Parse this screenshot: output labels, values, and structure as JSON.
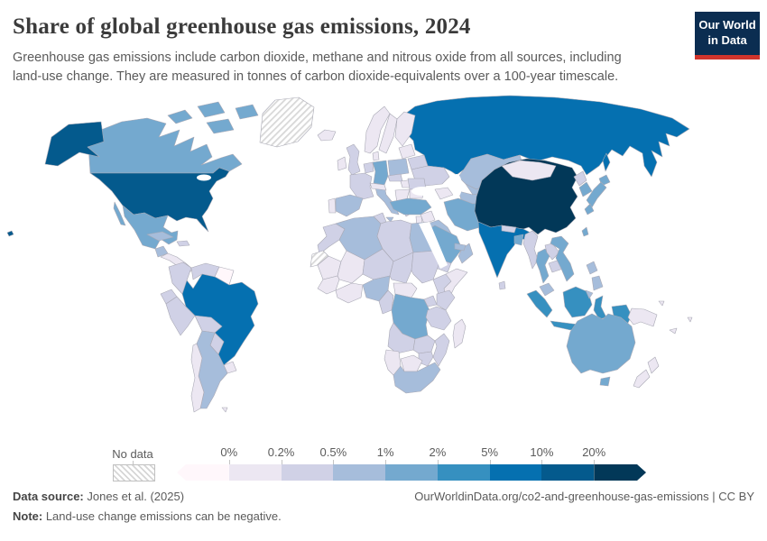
{
  "header": {
    "title": "Share of global greenhouse gas emissions, 2024",
    "subtitle": "Greenhouse gas emissions include carbon dioxide, methane and nitrous oxide from all sources, including land-use change. They are measured in tonnes of carbon dioxide-equivalents over a 100-year timescale.",
    "logo": {
      "line1": "Our World",
      "line2": "in Data",
      "bg_color": "#0b2d51",
      "accent_color": "#d0342c"
    }
  },
  "legend": {
    "no_data_label": "No data"
  },
  "footer": {
    "source_label": "Data source:",
    "source_text": " Jones et al. (2025)",
    "note_label": "Note:",
    "note_text": " Land-use change emissions can be negative.",
    "credit": "OurWorldinData.org/co2-and-greenhouse-gas-emissions | CC BY"
  },
  "chart_data": {
    "type": "choropleth",
    "title": "Share of global greenhouse gas emissions, 2024",
    "unit": "% of global greenhouse gas emissions",
    "projection": "world map",
    "legend_position": "bottom",
    "tick_labels": [
      "0%",
      "0.2%",
      "0.5%",
      "1%",
      "2%",
      "5%",
      "10%",
      "20%"
    ],
    "bins": [
      {
        "range": "<0%",
        "color": "#fff7fb"
      },
      {
        "range": "0–0.2%",
        "color": "#ece7f2"
      },
      {
        "range": "0.2–0.5%",
        "color": "#d0d1e6"
      },
      {
        "range": "0.5–1%",
        "color": "#a6bddb"
      },
      {
        "range": "1–2%",
        "color": "#74a9cf"
      },
      {
        "range": "2–5%",
        "color": "#3690c0"
      },
      {
        "range": "5–10%",
        "color": "#0570b0"
      },
      {
        "range": "10–20%",
        "color": "#045a8d"
      },
      {
        "range": ">20%",
        "color": "#023858"
      }
    ],
    "no_data": {
      "label": "No data",
      "pattern": "diagonal-hatch"
    },
    "countries": {
      "usa": {
        "name": "United States",
        "bin": 7
      },
      "canada": {
        "name": "Canada",
        "bin": 4
      },
      "greenland": {
        "name": "Greenland",
        "bin": -1
      },
      "mexico": {
        "name": "Mexico",
        "bin": 4
      },
      "guatemala": {
        "name": "Guatemala",
        "bin": 3
      },
      "centralamerica": {
        "name": "Central America",
        "bin": 1
      },
      "cuba": {
        "name": "Cuba",
        "bin": 3
      },
      "hispaniola": {
        "name": "Haiti & Dominican Republic",
        "bin": 2
      },
      "colombia": {
        "name": "Colombia",
        "bin": 2
      },
      "venezuela": {
        "name": "Venezuela",
        "bin": 2
      },
      "guyanas": {
        "name": "Guyana & Suriname",
        "bin": 0
      },
      "ecuador": {
        "name": "Ecuador",
        "bin": 2
      },
      "peru": {
        "name": "Peru",
        "bin": 2
      },
      "brazil": {
        "name": "Brazil",
        "bin": 6
      },
      "bolivia": {
        "name": "Bolivia",
        "bin": 2
      },
      "paraguay": {
        "name": "Paraguay",
        "bin": 2
      },
      "uruguay": {
        "name": "Uruguay",
        "bin": 1
      },
      "argentina": {
        "name": "Argentina",
        "bin": 3
      },
      "chile": {
        "name": "Chile",
        "bin": 1
      },
      "falkland": {
        "name": "Falkland Islands",
        "bin": 1
      },
      "iceland": {
        "name": "Iceland",
        "bin": 1
      },
      "norway": {
        "name": "Norway",
        "bin": 1
      },
      "sweden": {
        "name": "Sweden",
        "bin": 1
      },
      "finland": {
        "name": "Finland",
        "bin": 1
      },
      "baltics": {
        "name": "Baltic states",
        "bin": 1
      },
      "belarus": {
        "name": "Belarus",
        "bin": 2
      },
      "ukraine": {
        "name": "Ukraine",
        "bin": 2
      },
      "uk": {
        "name": "United Kingdom",
        "bin": 2
      },
      "ireland": {
        "name": "Ireland",
        "bin": 1
      },
      "denmark": {
        "name": "Denmark",
        "bin": 1
      },
      "benelux": {
        "name": "Benelux",
        "bin": 2
      },
      "germany": {
        "name": "Germany",
        "bin": 4
      },
      "poland": {
        "name": "Poland",
        "bin": 3
      },
      "france": {
        "name": "France",
        "bin": 2
      },
      "spain": {
        "name": "Spain",
        "bin": 3
      },
      "portugal": {
        "name": "Portugal",
        "bin": 1
      },
      "italy": {
        "name": "Italy",
        "bin": 3
      },
      "czechia": {
        "name": "Czechia",
        "bin": 2
      },
      "alpine": {
        "name": "Austria & Switzerland",
        "bin": 1
      },
      "pannonia": {
        "name": "Hungary & Slovakia",
        "bin": 1
      },
      "romania": {
        "name": "Romania",
        "bin": 2
      },
      "bulgaria": {
        "name": "Bulgaria",
        "bin": 1
      },
      "balkans": {
        "name": "Western Balkans",
        "bin": 1
      },
      "greece": {
        "name": "Greece",
        "bin": 2
      },
      "russia": {
        "name": "Russia",
        "bin": 6
      },
      "kazakhstan": {
        "name": "Kazakhstan",
        "bin": 3
      },
      "uzbekistan": {
        "name": "Uzbekistan",
        "bin": 3
      },
      "turkmenistan": {
        "name": "Turkmenistan",
        "bin": 3
      },
      "kyrgyztajik": {
        "name": "Kyrgyzstan & Tajikistan",
        "bin": 1
      },
      "caucasus": {
        "name": "Caucasus",
        "bin": 1
      },
      "turkey": {
        "name": "Turkey",
        "bin": 4
      },
      "syria": {
        "name": "Syria",
        "bin": 1
      },
      "levant": {
        "name": "Israel & Jordan",
        "bin": 1
      },
      "iraq": {
        "name": "Iraq",
        "bin": 3
      },
      "iran": {
        "name": "Iran",
        "bin": 4
      },
      "afghanistan": {
        "name": "Afghanistan",
        "bin": 2
      },
      "pakistan": {
        "name": "Pakistan",
        "bin": 4
      },
      "saudiarabia": {
        "name": "Saudi Arabia",
        "bin": 4
      },
      "yemen": {
        "name": "Yemen",
        "bin": 2
      },
      "oman": {
        "name": "Oman",
        "bin": 3
      },
      "uae": {
        "name": "United Arab Emirates",
        "bin": 3
      },
      "india": {
        "name": "India",
        "bin": 6
      },
      "nepal": {
        "name": "Nepal",
        "bin": 2
      },
      "bangladesh": {
        "name": "Bangladesh",
        "bin": 4
      },
      "srilanka": {
        "name": "Sri Lanka",
        "bin": 2
      },
      "china": {
        "name": "China",
        "bin": 8
      },
      "mongolia": {
        "name": "Mongolia",
        "bin": 1
      },
      "northkorea": {
        "name": "North Korea",
        "bin": 2
      },
      "southkorea": {
        "name": "South Korea",
        "bin": 4
      },
      "japan": {
        "name": "Japan",
        "bin": 4
      },
      "taiwan": {
        "name": "Taiwan",
        "bin": 4
      },
      "myanmar": {
        "name": "Myanmar",
        "bin": 2
      },
      "thailand": {
        "name": "Thailand",
        "bin": 4
      },
      "laos": {
        "name": "Laos",
        "bin": 2
      },
      "cambodia": {
        "name": "Cambodia",
        "bin": 2
      },
      "vietnam": {
        "name": "Vietnam",
        "bin": 4
      },
      "malaysia": {
        "name": "Malaysia",
        "bin": 3
      },
      "indonesia": {
        "name": "Indonesia",
        "bin": 5
      },
      "papuanewguinea": {
        "name": "Papua New Guinea",
        "bin": 1
      },
      "philippines": {
        "name": "Philippines",
        "bin": 3
      },
      "morocco": {
        "name": "Morocco",
        "bin": 2
      },
      "westernsahara": {
        "name": "Western Sahara",
        "bin": -1
      },
      "algeria": {
        "name": "Algeria",
        "bin": 3
      },
      "tunisia": {
        "name": "Tunisia",
        "bin": 2
      },
      "libya": {
        "name": "Libya",
        "bin": 2
      },
      "egypt": {
        "name": "Egypt",
        "bin": 3
      },
      "mauritania": {
        "name": "Mauritania",
        "bin": 1
      },
      "mali": {
        "name": "Mali",
        "bin": 1
      },
      "niger": {
        "name": "Niger",
        "bin": 2
      },
      "chad": {
        "name": "Chad",
        "bin": 2
      },
      "sudan": {
        "name": "Sudan",
        "bin": 2
      },
      "ethiopia": {
        "name": "Ethiopia",
        "bin": 2
      },
      "somalia": {
        "name": "Somalia",
        "bin": 1
      },
      "senegal": {
        "name": "Senegal & Guinea",
        "bin": 1
      },
      "ivoryghana": {
        "name": "Côte d'Ivoire & Ghana",
        "bin": 1
      },
      "nigeria": {
        "name": "Nigeria",
        "bin": 3
      },
      "cameroon": {
        "name": "Cameroon",
        "bin": 2
      },
      "car": {
        "name": "Central African Republic",
        "bin": 1
      },
      "drc": {
        "name": "Democratic Republic of Congo",
        "bin": 4
      },
      "uganda": {
        "name": "Uganda",
        "bin": 2
      },
      "kenya": {
        "name": "Kenya",
        "bin": 2
      },
      "tanzania": {
        "name": "Tanzania",
        "bin": 2
      },
      "angola": {
        "name": "Angola",
        "bin": 2
      },
      "zambia": {
        "name": "Zambia",
        "bin": 2
      },
      "mozambique": {
        "name": "Mozambique",
        "bin": 2
      },
      "zimbabwe": {
        "name": "Zimbabwe",
        "bin": 2
      },
      "namibia": {
        "name": "Namibia",
        "bin": 1
      },
      "botswana": {
        "name": "Botswana",
        "bin": 1
      },
      "southafrica": {
        "name": "South Africa",
        "bin": 3
      },
      "madagascar": {
        "name": "Madagascar",
        "bin": 1
      },
      "australia": {
        "name": "Australia",
        "bin": 4
      },
      "newzealand": {
        "name": "New Zealand",
        "bin": 1
      },
      "fiji": {
        "name": "Fiji",
        "bin": 1
      },
      "newcaledonia": {
        "name": "New Caledonia",
        "bin": 1
      },
      "solomonislands": {
        "name": "Solomon Islands",
        "bin": 1
      }
    }
  }
}
